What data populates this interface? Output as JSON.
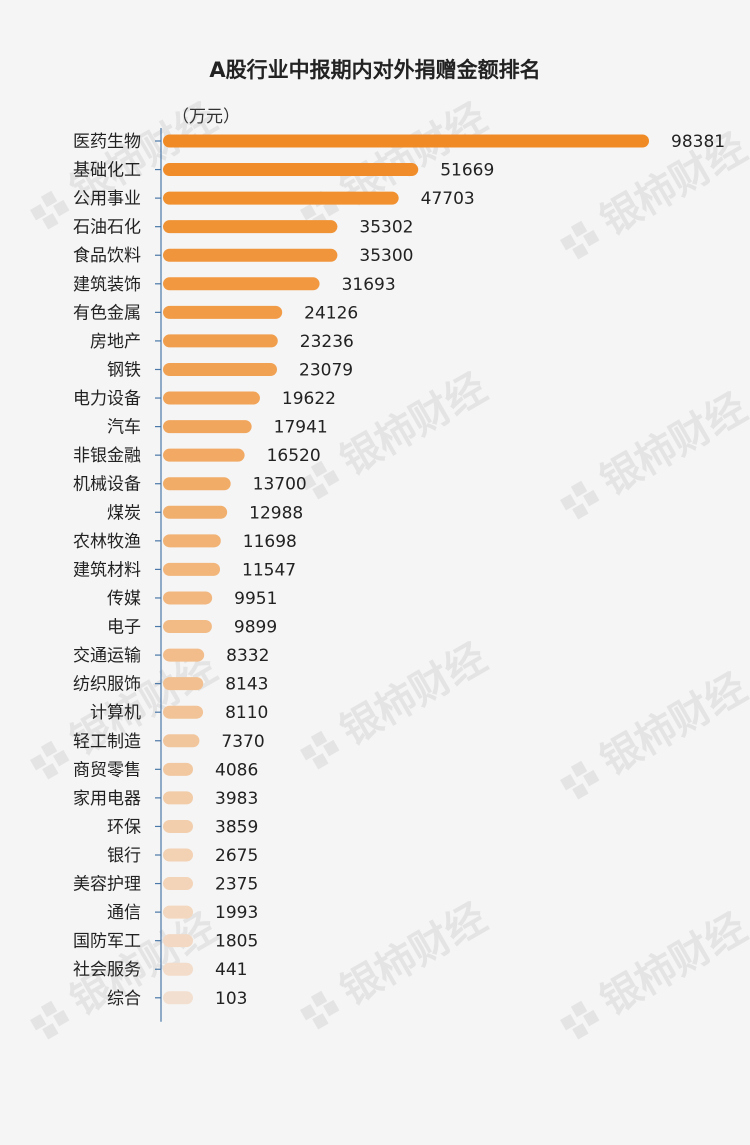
{
  "chart_data": {
    "type": "bar",
    "orientation": "horizontal",
    "title": "A股行业中报期内对外捐赠金额排名",
    "unit": "（万元）",
    "categories": [
      "医药生物",
      "基础化工",
      "公用事业",
      "石油石化",
      "食品饮料",
      "建筑装饰",
      "有色金属",
      "房地产",
      "钢铁",
      "电力设备",
      "汽车",
      "非银金融",
      "机械设备",
      "煤炭",
      "农林牧渔",
      "建筑材料",
      "传媒",
      "电子",
      "交通运输",
      "纺织服饰",
      "计算机",
      "轻工制造",
      "商贸零售",
      "家用电器",
      "环保",
      "银行",
      "美容护理",
      "通信",
      "国防军工",
      "社会服务",
      "综合"
    ],
    "values": [
      98381,
      51669,
      47703,
      35302,
      35300,
      31693,
      24126,
      23236,
      23079,
      19622,
      17941,
      16520,
      13700,
      12988,
      11698,
      11547,
      9951,
      9899,
      8332,
      8143,
      8110,
      7370,
      4086,
      3983,
      3859,
      2675,
      2375,
      1993,
      1805,
      441,
      103
    ],
    "colors": {
      "start": "#f08a24",
      "end": "#f3dfcf"
    },
    "grid": false,
    "legend": "none"
  },
  "watermark": "银柿财经"
}
